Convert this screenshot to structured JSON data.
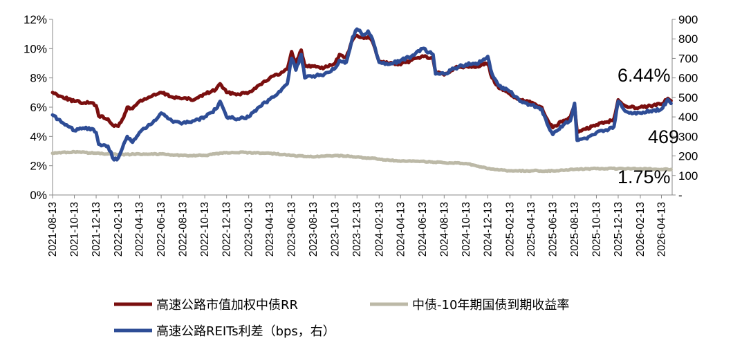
{
  "chart_data": {
    "type": "line",
    "x_tick_labels": [
      "2021-08-13",
      "2021-10-13",
      "2021-12-13",
      "2022-02-13",
      "2022-04-13",
      "2022-06-13",
      "2022-08-13",
      "2022-10-13",
      "2022-12-13",
      "2023-02-13",
      "2023-04-13",
      "2023-06-13",
      "2023-08-13",
      "2023-10-13",
      "2023-12-13",
      "2024-02-13",
      "2024-04-13",
      "2024-06-13",
      "2024-08-13",
      "2024-10-13",
      "2024-12-13",
      "2025-02-13",
      "2025-04-13",
      "2025-06-13",
      "2025-08-13",
      "2025-10-13",
      "2025-12-13",
      "2026-02-13",
      "2026-04-13"
    ],
    "y_left": {
      "ticks": [
        "0%",
        "2%",
        "4%",
        "6%",
        "8%",
        "10%",
        "12%"
      ],
      "range": [
        0,
        12
      ],
      "unit": "%"
    },
    "y_right": {
      "ticks": [
        "-",
        "100",
        "200",
        "300",
        "400",
        "500",
        "600",
        "700",
        "800",
        "900"
      ],
      "range": [
        0,
        900
      ],
      "unit": "bps"
    },
    "grid": false,
    "legend_position": "bottom",
    "annotations": [
      {
        "text": "6.44%",
        "series": "高速公路市值加权中债RR"
      },
      {
        "text": "469",
        "series": "高速公路REITs利差（bps，右）"
      },
      {
        "text": "1.75%",
        "series": "中债-10年期国债到期收益率"
      }
    ],
    "series": [
      {
        "name": "高速公路市值加权中债RR",
        "axis": "left",
        "color": "#7a0f0f",
        "points": [
          [
            "2021-08-13",
            7.0
          ],
          [
            "2021-09-10",
            6.7
          ],
          [
            "2021-10-13",
            6.4
          ],
          [
            "2021-11-10",
            6.3
          ],
          [
            "2021-12-01",
            6.3
          ],
          [
            "2021-12-13",
            6.1
          ],
          [
            "2021-12-20",
            5.4
          ],
          [
            "2022-01-15",
            5.2
          ],
          [
            "2022-02-01",
            4.7
          ],
          [
            "2022-02-13",
            4.7
          ],
          [
            "2022-02-28",
            5.3
          ],
          [
            "2022-03-10",
            6.0
          ],
          [
            "2022-03-25",
            5.9
          ],
          [
            "2022-04-13",
            6.4
          ],
          [
            "2022-05-13",
            6.7
          ],
          [
            "2022-06-13",
            7.0
          ],
          [
            "2022-07-13",
            6.7
          ],
          [
            "2022-08-13",
            6.6
          ],
          [
            "2022-09-13",
            6.5
          ],
          [
            "2022-10-13",
            6.9
          ],
          [
            "2022-11-13",
            7.2
          ],
          [
            "2022-11-25",
            7.6
          ],
          [
            "2022-12-13",
            7.0
          ],
          [
            "2023-01-13",
            6.9
          ],
          [
            "2023-02-13",
            7.0
          ],
          [
            "2023-03-13",
            7.5
          ],
          [
            "2023-04-13",
            8.0
          ],
          [
            "2023-05-13",
            8.3
          ],
          [
            "2023-06-01",
            8.6
          ],
          [
            "2023-06-13",
            9.8
          ],
          [
            "2023-06-25",
            9.0
          ],
          [
            "2023-07-10",
            9.9
          ],
          [
            "2023-07-20",
            8.8
          ],
          [
            "2023-08-13",
            8.8
          ],
          [
            "2023-09-13",
            8.7
          ],
          [
            "2023-10-13",
            9.0
          ],
          [
            "2023-10-25",
            9.6
          ],
          [
            "2023-11-13",
            9.4
          ],
          [
            "2023-12-01",
            10.6
          ],
          [
            "2023-12-13",
            10.9
          ],
          [
            "2024-01-01",
            10.7
          ],
          [
            "2024-01-13",
            10.8
          ],
          [
            "2024-01-25",
            10.5
          ],
          [
            "2024-02-13",
            9.1
          ],
          [
            "2024-03-13",
            9.0
          ],
          [
            "2024-04-13",
            8.9
          ],
          [
            "2024-05-13",
            9.2
          ],
          [
            "2024-06-13",
            9.5
          ],
          [
            "2024-07-13",
            9.3
          ],
          [
            "2024-07-20",
            8.4
          ],
          [
            "2024-08-13",
            8.2
          ],
          [
            "2024-09-13",
            8.7
          ],
          [
            "2024-10-13",
            8.8
          ],
          [
            "2024-11-13",
            8.8
          ],
          [
            "2024-12-13",
            9.0
          ],
          [
            "2024-12-25",
            8.0
          ],
          [
            "2025-01-13",
            7.3
          ],
          [
            "2025-02-13",
            6.9
          ],
          [
            "2025-03-13",
            6.5
          ],
          [
            "2025-04-13",
            6.3
          ],
          [
            "2025-05-13",
            6.0
          ],
          [
            "2025-06-01",
            5.0
          ],
          [
            "2025-06-13",
            4.6
          ],
          [
            "2025-07-13",
            5.1
          ],
          [
            "2025-08-01",
            5.3
          ],
          [
            "2025-08-13",
            6.1
          ],
          [
            "2025-08-20",
            4.3
          ],
          [
            "2025-09-13",
            4.5
          ],
          [
            "2025-10-13",
            4.8
          ],
          [
            "2025-11-13",
            5.0
          ],
          [
            "2025-12-01",
            5.2
          ],
          [
            "2025-12-13",
            6.5
          ],
          [
            "2026-01-01",
            6.1
          ],
          [
            "2026-01-13",
            6.0
          ],
          [
            "2026-02-13",
            6.0
          ],
          [
            "2026-03-13",
            6.1
          ],
          [
            "2026-04-13",
            6.2
          ],
          [
            "2026-05-01",
            6.6
          ],
          [
            "2026-05-10",
            6.44
          ]
        ]
      },
      {
        "name": "中债-10年期国债到期收益率",
        "axis": "left",
        "color": "#bcb9a7",
        "points": [
          [
            "2021-08-13",
            2.85
          ],
          [
            "2021-10-13",
            2.95
          ],
          [
            "2021-12-13",
            2.85
          ],
          [
            "2022-02-13",
            2.75
          ],
          [
            "2022-04-13",
            2.8
          ],
          [
            "2022-06-13",
            2.8
          ],
          [
            "2022-08-13",
            2.7
          ],
          [
            "2022-10-13",
            2.7
          ],
          [
            "2022-12-13",
            2.9
          ],
          [
            "2023-02-13",
            2.9
          ],
          [
            "2023-04-13",
            2.85
          ],
          [
            "2023-06-13",
            2.7
          ],
          [
            "2023-08-13",
            2.6
          ],
          [
            "2023-10-13",
            2.7
          ],
          [
            "2023-12-13",
            2.6
          ],
          [
            "2024-02-13",
            2.45
          ],
          [
            "2024-04-13",
            2.3
          ],
          [
            "2024-06-13",
            2.3
          ],
          [
            "2024-08-13",
            2.2
          ],
          [
            "2024-10-13",
            2.15
          ],
          [
            "2024-12-13",
            1.8
          ],
          [
            "2025-02-13",
            1.65
          ],
          [
            "2025-04-13",
            1.65
          ],
          [
            "2025-06-13",
            1.65
          ],
          [
            "2025-08-13",
            1.75
          ],
          [
            "2025-10-13",
            1.8
          ],
          [
            "2025-12-13",
            1.8
          ],
          [
            "2026-02-13",
            1.8
          ],
          [
            "2026-04-13",
            1.75
          ],
          [
            "2026-05-10",
            1.75
          ]
        ]
      },
      {
        "name": "高速公路REITs利差（bps，右）",
        "axis": "right",
        "color": "#2e4d96",
        "points": [
          [
            "2021-08-13",
            410
          ],
          [
            "2021-09-10",
            370
          ],
          [
            "2021-10-13",
            330
          ],
          [
            "2021-11-10",
            340
          ],
          [
            "2021-12-01",
            340
          ],
          [
            "2021-12-13",
            320
          ],
          [
            "2021-12-20",
            260
          ],
          [
            "2022-01-15",
            250
          ],
          [
            "2022-02-01",
            180
          ],
          [
            "2022-02-13",
            190
          ],
          [
            "2022-02-28",
            260
          ],
          [
            "2022-03-10",
            300
          ],
          [
            "2022-03-25",
            270
          ],
          [
            "2022-04-13",
            320
          ],
          [
            "2022-05-13",
            360
          ],
          [
            "2022-06-13",
            420
          ],
          [
            "2022-07-13",
            380
          ],
          [
            "2022-08-13",
            370
          ],
          [
            "2022-09-13",
            380
          ],
          [
            "2022-10-13",
            400
          ],
          [
            "2022-11-13",
            440
          ],
          [
            "2022-11-25",
            480
          ],
          [
            "2022-12-13",
            400
          ],
          [
            "2023-01-13",
            390
          ],
          [
            "2023-02-13",
            400
          ],
          [
            "2023-03-13",
            450
          ],
          [
            "2023-04-13",
            490
          ],
          [
            "2023-05-13",
            530
          ],
          [
            "2023-06-01",
            570
          ],
          [
            "2023-06-13",
            700
          ],
          [
            "2023-06-25",
            640
          ],
          [
            "2023-07-10",
            720
          ],
          [
            "2023-07-20",
            600
          ],
          [
            "2023-08-13",
            610
          ],
          [
            "2023-09-13",
            620
          ],
          [
            "2023-10-13",
            650
          ],
          [
            "2023-10-25",
            690
          ],
          [
            "2023-11-13",
            680
          ],
          [
            "2023-12-01",
            810
          ],
          [
            "2023-12-13",
            850
          ],
          [
            "2024-01-01",
            820
          ],
          [
            "2024-01-13",
            840
          ],
          [
            "2024-01-25",
            800
          ],
          [
            "2024-02-13",
            680
          ],
          [
            "2024-03-13",
            670
          ],
          [
            "2024-04-13",
            690
          ],
          [
            "2024-05-13",
            710
          ],
          [
            "2024-06-13",
            750
          ],
          [
            "2024-07-13",
            720
          ],
          [
            "2024-07-20",
            620
          ],
          [
            "2024-08-13",
            620
          ],
          [
            "2024-09-13",
            650
          ],
          [
            "2024-10-13",
            670
          ],
          [
            "2024-11-13",
            670
          ],
          [
            "2024-12-13",
            710
          ],
          [
            "2024-12-25",
            620
          ],
          [
            "2025-01-13",
            560
          ],
          [
            "2025-02-13",
            530
          ],
          [
            "2025-03-13",
            480
          ],
          [
            "2025-04-13",
            460
          ],
          [
            "2025-05-13",
            440
          ],
          [
            "2025-06-01",
            350
          ],
          [
            "2025-06-13",
            310
          ],
          [
            "2025-07-13",
            360
          ],
          [
            "2025-08-01",
            380
          ],
          [
            "2025-08-13",
            470
          ],
          [
            "2025-08-20",
            280
          ],
          [
            "2025-09-13",
            290
          ],
          [
            "2025-10-13",
            320
          ],
          [
            "2025-11-13",
            330
          ],
          [
            "2025-12-01",
            350
          ],
          [
            "2025-12-13",
            480
          ],
          [
            "2026-01-01",
            430
          ],
          [
            "2026-01-13",
            420
          ],
          [
            "2026-02-13",
            420
          ],
          [
            "2026-03-13",
            430
          ],
          [
            "2026-04-13",
            440
          ],
          [
            "2026-05-01",
            490
          ],
          [
            "2026-05-10",
            469
          ]
        ]
      }
    ]
  }
}
